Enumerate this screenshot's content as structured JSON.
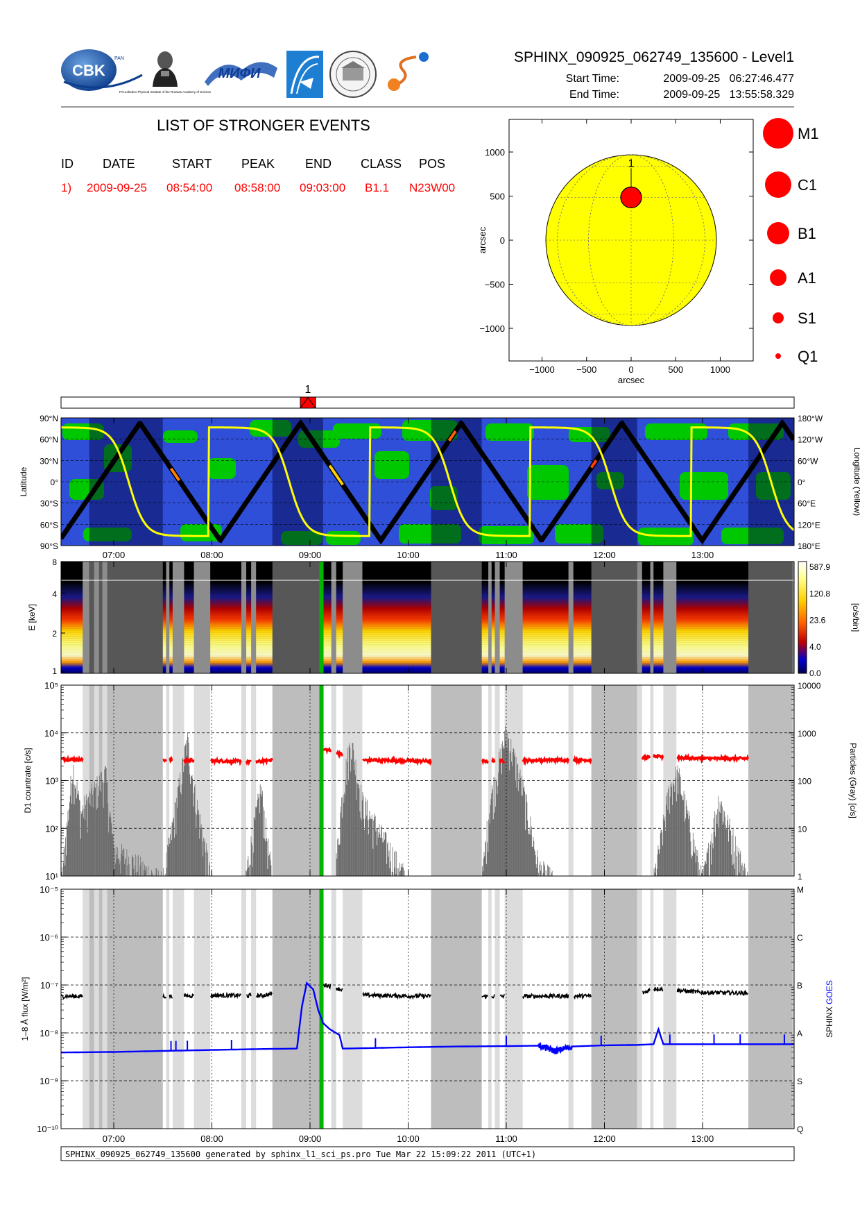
{
  "header": {
    "title": "SPHINX_090925_062749_135600 - Level1",
    "start_label": "Start Time:",
    "start_value": "2009-09-25   06:27:46.477",
    "end_label": "End Time:",
    "end_value": "2009-09-25   13:55:58.329",
    "logos": [
      {
        "name": "cbk-logo",
        "text": "CBK",
        "sub": "PAN"
      },
      {
        "name": "lebedev-logo",
        "text": "P.N.Lebedev Physical Institute of the Russian Academy of Science"
      },
      {
        "name": "miphi-logo",
        "text": "МИФИ"
      },
      {
        "name": "blue-arch-logo",
        "text": ""
      },
      {
        "name": "seal-logo",
        "text": ""
      },
      {
        "name": "swirl-logo",
        "text": ""
      }
    ]
  },
  "events": {
    "heading": "LIST OF STRONGER EVENTS",
    "columns": [
      "ID",
      "DATE",
      "START",
      "PEAK",
      "END",
      "CLASS",
      "POS"
    ],
    "rows": [
      {
        "id": "1)",
        "date": "2009-09-25",
        "start": "08:54:00",
        "peak": "08:58:00",
        "end": "09:03:00",
        "class": "B1.1",
        "pos": "N23W00"
      }
    ],
    "row_color": "#ff0000"
  },
  "disk": {
    "xlabel": "arcsec",
    "ylabel": "arcsec",
    "xticks": [
      -1000,
      -500,
      0,
      500,
      1000
    ],
    "yticks": [
      1000,
      500,
      0,
      -500,
      -1000
    ],
    "range": [
      -1370,
      1370
    ],
    "sun_radius": 957,
    "sun_color": "#ffff00",
    "flare": {
      "label": "1",
      "x": 0,
      "y": 485,
      "class": "B1"
    }
  },
  "size_legend": [
    {
      "label": "M1"
    },
    {
      "label": "C1"
    },
    {
      "label": "B1"
    },
    {
      "label": "A1"
    },
    {
      "label": "S1"
    },
    {
      "label": "Q1"
    }
  ],
  "event_bar": {
    "label": "1",
    "time": "09:00"
  },
  "orbit_panel": {
    "ylabel_left": "Latitude",
    "ylabel_right": "Longitude (Yellow)",
    "left_ticks": [
      "90°N",
      "60°N",
      "30°N",
      "0°",
      "30°S",
      "60°S",
      "90°S"
    ],
    "right_ticks": [
      "180°W",
      "120°W",
      "60°W",
      "0°",
      "60°E",
      "120°E",
      "180°E"
    ],
    "night_intervals": [
      [
        "06:45",
        "07:30"
      ],
      [
        "08:37",
        "09:08"
      ],
      [
        "10:14",
        "10:45"
      ],
      [
        "11:52",
        "12:20"
      ],
      [
        "13:28",
        "13:56"
      ]
    ]
  },
  "spectrogram": {
    "ylabel": "E [keV]",
    "yticks": [
      "8",
      "4",
      "2",
      "1"
    ],
    "colorbar_ticks": [
      "587.9",
      "120.8",
      "23.6",
      "4.0",
      "0.0"
    ],
    "colorbar_label": "[c/s/bin]"
  },
  "countrate": {
    "ylabel_left": "D1 countrate [c/s]",
    "ylabel_right": "Particles (Gray) [c/s]",
    "left_ticks": [
      "10⁵",
      "10⁴",
      "10³",
      "10²",
      "10¹"
    ],
    "right_ticks": [
      "10000",
      "1000",
      "100",
      "10",
      "1"
    ]
  },
  "flux": {
    "ylabel_left": "1–8 Å flux [W/m²]",
    "ylabel_right_a": "SPHINX",
    "ylabel_right_b": "GOES",
    "left_ticks": [
      "10⁻⁵",
      "10⁻⁶",
      "10⁻⁷",
      "10⁻⁸",
      "10⁻⁹",
      "10⁻¹⁰"
    ],
    "class_ticks": [
      "M",
      "C",
      "B",
      "A",
      "S",
      "Q"
    ]
  },
  "time_ticks": [
    "07:00",
    "08:00",
    "09:00",
    "10:00",
    "11:00",
    "12:00",
    "13:00"
  ],
  "footer": "SPHINX_090925_062749_135600 generated by sphinx_l1_sci_ps.pro Tue Mar 22 15:09:22 2011 (UTC+1)",
  "chart_data": {
    "type": "line",
    "x_range": [
      "06:27:46",
      "13:55:58"
    ],
    "flare_marker": "09:07",
    "gap_intervals_dark": [
      [
        "06:45",
        "07:30"
      ],
      [
        "08:37",
        "09:08"
      ],
      [
        "10:14",
        "10:45"
      ],
      [
        "11:52",
        "12:20"
      ],
      [
        "13:28",
        "13:56"
      ]
    ],
    "gap_intervals_light": [
      [
        "06:41",
        "06:45"
      ],
      [
        "06:48",
        "06:51"
      ],
      [
        "06:53",
        "06:56"
      ],
      [
        "07:32",
        "07:34"
      ],
      [
        "07:36",
        "07:43"
      ],
      [
        "07:49",
        "07:59"
      ],
      [
        "08:18",
        "08:21"
      ],
      [
        "08:24",
        "08:27"
      ],
      [
        "09:13",
        "09:16"
      ],
      [
        "09:20",
        "09:32"
      ],
      [
        "10:49",
        "10:51"
      ],
      [
        "10:53",
        "10:56"
      ],
      [
        "10:59",
        "11:10"
      ],
      [
        "11:38",
        "11:41"
      ],
      [
        "12:20",
        "12:23"
      ],
      [
        "12:28",
        "12:30"
      ],
      [
        "12:36",
        "12:44"
      ],
      [
        "13:55",
        "13:56"
      ]
    ],
    "series": [
      {
        "name": "SPHINX",
        "panel": "flux",
        "color": "#000000",
        "x": [
          "06:28",
          "07:00",
          "07:30",
          "08:00",
          "08:30",
          "09:10",
          "09:30",
          "10:00",
          "10:30",
          "11:00",
          "11:30",
          "12:00",
          "12:20",
          "12:30",
          "13:00",
          "13:30",
          "13:56"
        ],
        "y": [
          5.8e-08,
          5.9e-08,
          5.8e-08,
          6.1e-08,
          6e-08,
          1e-07,
          6.2e-08,
          5.9e-08,
          5.8e-08,
          5.8e-08,
          5.9e-08,
          5.9e-08,
          6e-08,
          8.5e-08,
          7e-08,
          6.8e-08,
          5.9e-08
        ]
      },
      {
        "name": "GOES",
        "panel": "flux",
        "color": "#0000ff",
        "x": [
          "06:28",
          "07:00",
          "07:30",
          "08:00",
          "08:30",
          "08:52",
          "08:55",
          "08:58",
          "09:02",
          "09:05",
          "09:08",
          "09:12",
          "09:18",
          "09:20",
          "10:00",
          "10:30",
          "11:00",
          "11:20",
          "11:30",
          "11:40",
          "12:00",
          "12:20",
          "12:30",
          "12:33",
          "12:36",
          "13:00",
          "13:56"
        ],
        "y": [
          3.9e-09,
          4e-09,
          4.2e-09,
          4.4e-09,
          4.6e-09,
          4.7e-09,
          3.5e-08,
          1.1e-07,
          8e-08,
          3e-08,
          1.6e-08,
          1.2e-08,
          9e-09,
          4.7e-09,
          5e-09,
          5.2e-09,
          5.3e-09,
          5.4e-09,
          4.2e-09,
          5.2e-09,
          5.5e-09,
          5.6e-09,
          5.8e-09,
          1.2e-08,
          5.8e-09,
          5.8e-09,
          5.8e-09
        ]
      },
      {
        "name": "D1",
        "panel": "countrate",
        "color": "#ff0000",
        "x": [
          "06:28",
          "07:00",
          "07:30",
          "08:00",
          "08:30",
          "09:10",
          "09:30",
          "10:00",
          "10:30",
          "11:00",
          "11:30",
          "12:00",
          "12:20",
          "12:30",
          "13:00",
          "13:30",
          "13:56"
        ],
        "y": [
          2800,
          2700,
          2700,
          2600,
          2500,
          4500,
          2700,
          2600,
          2500,
          2600,
          2700,
          2700,
          2800,
          3200,
          2900,
          2900,
          2800
        ]
      },
      {
        "name": "Particles",
        "panel": "countrate",
        "color": "#808080",
        "x": [
          "06:28",
          "06:35",
          "06:40",
          "06:55",
          "07:00",
          "07:30",
          "07:40",
          "07:45",
          "07:50",
          "08:00",
          "08:20",
          "08:30",
          "08:37",
          "09:15",
          "09:20",
          "09:25",
          "09:32",
          "10:00",
          "10:45",
          "10:50",
          "11:00",
          "11:10",
          "11:20",
          "11:30",
          "11:52",
          "12:30",
          "12:40",
          "12:45",
          "13:00",
          "13:10",
          "13:28",
          "13:56"
        ],
        "y": [
          1,
          300,
          30,
          200,
          5,
          1,
          100,
          1000,
          60,
          1,
          1,
          100,
          1,
          1,
          100,
          1000,
          50,
          1,
          1,
          50,
          1500,
          100,
          2,
          1,
          1,
          1,
          100,
          200,
          1,
          60,
          1,
          1
        ]
      }
    ]
  }
}
